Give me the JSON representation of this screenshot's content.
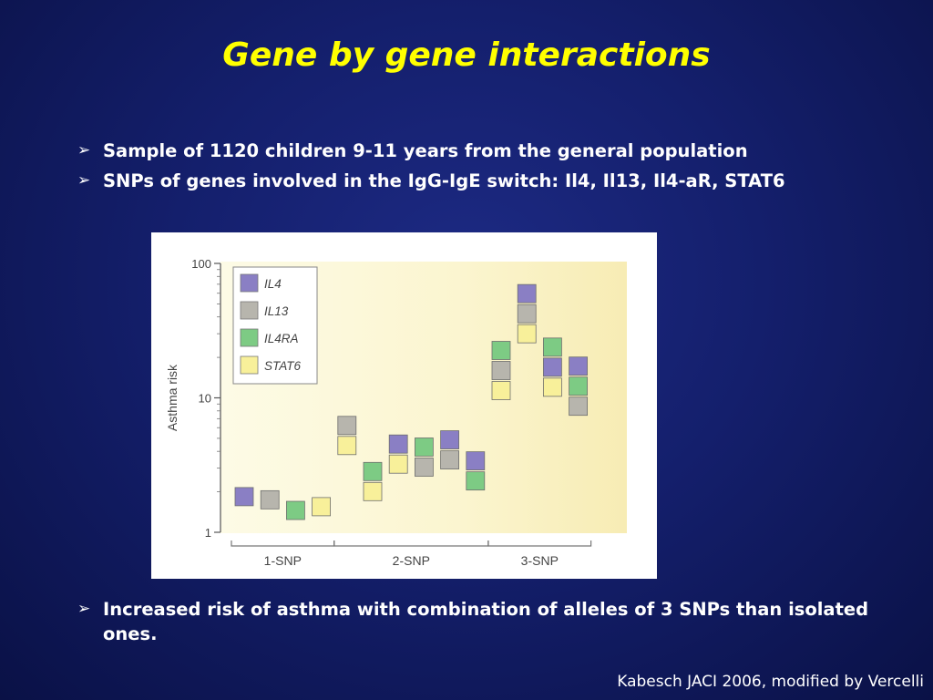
{
  "slide": {
    "title": "Gene by gene interactions",
    "bullets_top": [
      "Sample of 1120 children 9-11 years from the general population",
      "SNPs of genes involved in the IgG-IgE switch: Il4, Il13, Il4-aR, STAT6"
    ],
    "bullets_bottom": [
      "Increased risk of asthma with combination of alleles of 3 SNPs than isolated ones."
    ],
    "bullet_marker": "➢",
    "credit": "Kabesch JACI 2006, modified by Vercelli",
    "colors": {
      "background": "#141f6c",
      "title": "#ffff00",
      "text": "#ffffff"
    }
  },
  "chart_data": {
    "type": "scatter",
    "ylabel": "Asthma risk",
    "yscale": "log",
    "ylim": [
      1,
      100
    ],
    "yticks": [
      {
        "value": 1,
        "label": "1"
      },
      {
        "value": 10,
        "label": "10"
      },
      {
        "value": 100,
        "label": "100"
      }
    ],
    "genes": [
      {
        "name": "IL4",
        "color": "#8a7fc4"
      },
      {
        "name": "IL13",
        "color": "#b7b5ad"
      },
      {
        "name": "IL4RA",
        "color": "#7dcb84"
      },
      {
        "name": "STAT6",
        "color": "#f8f09a"
      }
    ],
    "groups": [
      {
        "label": "1-SNP",
        "columns": [
          0,
          1,
          2,
          3
        ]
      },
      {
        "label": "2-SNP",
        "columns": [
          4,
          5,
          6,
          7,
          8,
          9
        ]
      },
      {
        "label": "3-SNP",
        "columns": [
          10,
          11,
          12,
          13
        ]
      }
    ],
    "columns": [
      {
        "risk": 1.9,
        "genes": [
          "IL4"
        ]
      },
      {
        "risk": 1.8,
        "genes": [
          "IL13"
        ]
      },
      {
        "risk": 1.5,
        "genes": [
          "IL4RA"
        ]
      },
      {
        "risk": 1.6,
        "genes": [
          "STAT6"
        ]
      },
      {
        "risk": 5.5,
        "genes": [
          "IL13",
          "STAT6"
        ]
      },
      {
        "risk": 2.5,
        "genes": [
          "IL4RA",
          "STAT6"
        ]
      },
      {
        "risk": 4.0,
        "genes": [
          "IL4",
          "STAT6"
        ]
      },
      {
        "risk": 3.8,
        "genes": [
          "IL4RA",
          "IL13"
        ]
      },
      {
        "risk": 4.3,
        "genes": [
          "IL4",
          "IL13"
        ]
      },
      {
        "risk": 3.0,
        "genes": [
          "IL4",
          "IL4RA"
        ]
      },
      {
        "risk": 17,
        "genes": [
          "IL4RA",
          "IL13",
          "STAT6"
        ]
      },
      {
        "risk": 45,
        "genes": [
          "IL4",
          "IL13",
          "STAT6"
        ]
      },
      {
        "risk": 18,
        "genes": [
          "IL4RA",
          "IL4",
          "STAT6"
        ]
      },
      {
        "risk": 13,
        "genes": [
          "IL4",
          "IL4RA",
          "IL13"
        ]
      }
    ],
    "legend_position": "top-left"
  }
}
